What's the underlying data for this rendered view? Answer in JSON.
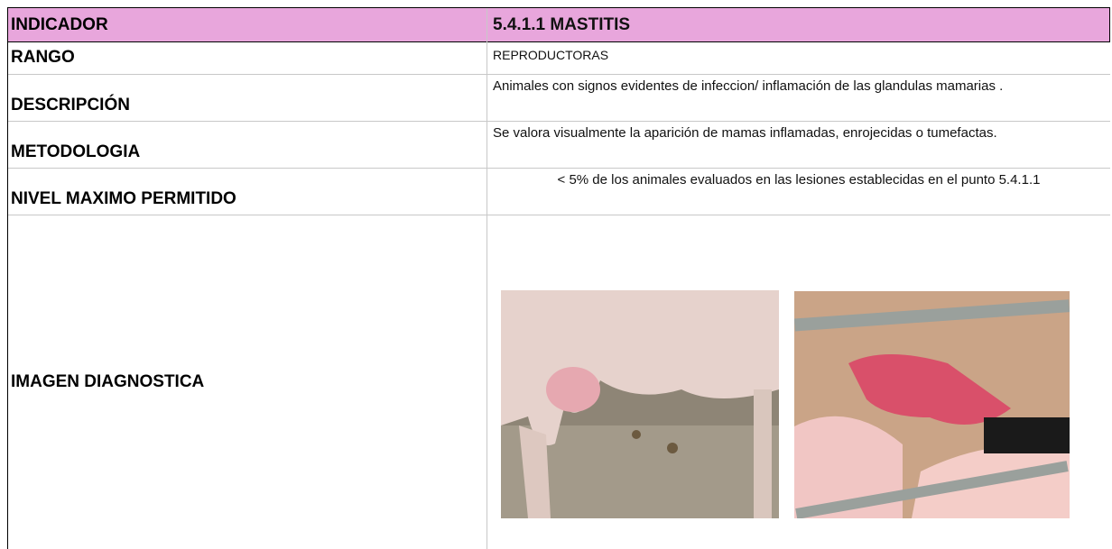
{
  "header": {
    "label": "INDICADOR",
    "value": "5.4.1.1  MASTITIS"
  },
  "rows": [
    {
      "label": "RANGO",
      "value": "REPRODUCTORAS"
    },
    {
      "label": "DESCRIPCIÓN",
      "value": "Animales con signos evidentes de infeccion/ inflamación de las glandulas mamarias ."
    },
    {
      "label": "METODOLOGIA",
      "value": "Se valora visualmente la aparición de mamas inflamadas, enrojecidas o tumefactas."
    },
    {
      "label": "NIVEL MAXIMO PERMITIDO",
      "value": "< 5% de los animales evaluados en las lesiones establecidas en el punto 5.4.1.1"
    },
    {
      "label": "IMAGEN DIAGNOSTICA"
    }
  ]
}
